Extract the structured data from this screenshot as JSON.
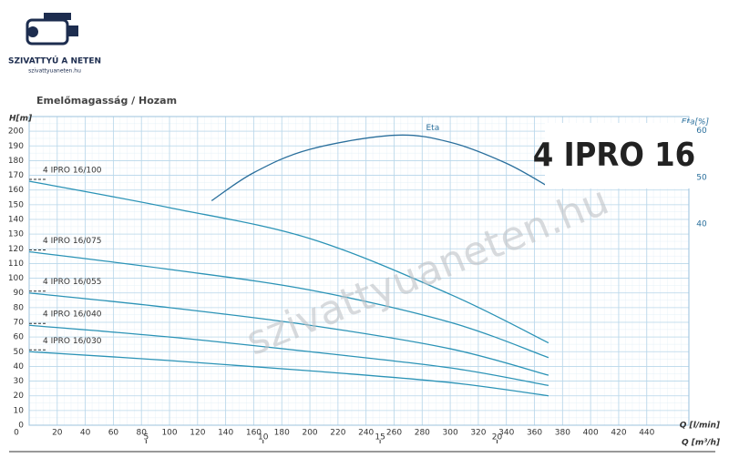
{
  "logo": {
    "title": "SZIVATTYÚ A NETEN",
    "subtitle": "szivattyuaneten.hu"
  },
  "badge": "4 IPRO 16",
  "watermark": "szivattyuaneten.hu",
  "chart_data": {
    "type": "line",
    "title": "Emelőmagasság / Hozam",
    "y_label": "H[m]",
    "y2_label": "Eta[%]",
    "x_label": "Q [l/min]",
    "x2_label": "Q [m³/h]",
    "xlim": [
      0,
      470
    ],
    "xticks": [
      0,
      20,
      40,
      60,
      80,
      100,
      120,
      140,
      160,
      180,
      200,
      220,
      240,
      260,
      280,
      300,
      320,
      340,
      360,
      380,
      400,
      420,
      440
    ],
    "x2lim": [
      0,
      28.2
    ],
    "x2ticks": [
      5,
      10,
      15,
      20
    ],
    "ylim": [
      0,
      210
    ],
    "yticks": [
      0,
      10,
      20,
      30,
      40,
      50,
      60,
      70,
      80,
      90,
      100,
      110,
      120,
      130,
      140,
      150,
      160,
      170,
      180,
      190,
      200
    ],
    "y2lim": [
      -3,
      63
    ],
    "y2ticks": [
      40,
      50,
      60
    ],
    "grid": true,
    "series": [
      {
        "name": "4 IPRO 16/100",
        "color": "#2b93b6",
        "x": [
          0,
          100,
          200,
          300,
          370
        ],
        "values": [
          166,
          148,
          127,
          89,
          56
        ]
      },
      {
        "name": "4 IPRO 16/075",
        "color": "#2b93b6",
        "x": [
          0,
          100,
          200,
          300,
          370
        ],
        "values": [
          118,
          106,
          92,
          70,
          46
        ]
      },
      {
        "name": "4 IPRO 16/055",
        "color": "#2b93b6",
        "x": [
          0,
          100,
          200,
          300,
          370
        ],
        "values": [
          90,
          80,
          68,
          52,
          34
        ]
      },
      {
        "name": "4 IPRO 16/040",
        "color": "#2b93b6",
        "x": [
          0,
          100,
          200,
          300,
          370
        ],
        "values": [
          68,
          60,
          50,
          39,
          27
        ]
      },
      {
        "name": "4 IPRO 16/030",
        "color": "#2b93b6",
        "x": [
          0,
          100,
          200,
          300,
          370
        ],
        "values": [
          50,
          44,
          37,
          29,
          20
        ]
      },
      {
        "name": "Eta",
        "color": "#2a6f9c",
        "axis": "y2",
        "x": [
          130,
          160,
          200,
          260,
          300,
          340,
          370
        ],
        "values": [
          45,
          51,
          56,
          59,
          57.5,
          53,
          48
        ]
      }
    ]
  }
}
